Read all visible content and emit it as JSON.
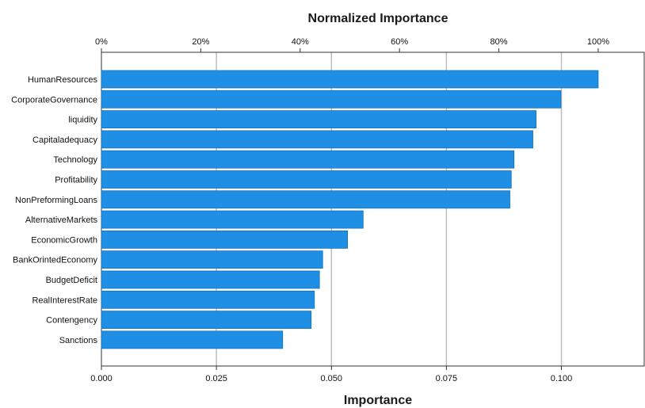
{
  "chart_data": {
    "type": "bar",
    "orientation": "horizontal",
    "title": "Normalized Importance",
    "xlabel": "Importance",
    "top_axis_ticks": [
      "0%",
      "20%",
      "40%",
      "60%",
      "80%",
      "100%"
    ],
    "top_axis_values": [
      0,
      20,
      40,
      60,
      80,
      100
    ],
    "bottom_axis_ticks": [
      "0.000",
      "0.025",
      "0.050",
      "0.075",
      "0.100"
    ],
    "bottom_axis_values": [
      0,
      0.025,
      0.05,
      0.075,
      0.1
    ],
    "xlim": [
      0,
      0.118
    ],
    "normalized_max": 0.108,
    "grid": "vertical",
    "bar_color": "#1f8fe6",
    "categories": [
      "HumanResources",
      "CorporateGovernance",
      "liquidity",
      "Capitaladequacy",
      "Technology",
      "Profitability",
      "NonPreformingLoans",
      "AlternativeMarkets",
      "EconomicGrowth",
      "BankOrintedEconomy",
      "BudgetDeficit",
      "RealInterestRate",
      "Contengency",
      "Sanctions"
    ],
    "values": [
      0.108,
      0.0999,
      0.0945,
      0.0938,
      0.0897,
      0.0891,
      0.0888,
      0.0569,
      0.0535,
      0.0481,
      0.0474,
      0.0463,
      0.0456,
      0.0394
    ]
  }
}
